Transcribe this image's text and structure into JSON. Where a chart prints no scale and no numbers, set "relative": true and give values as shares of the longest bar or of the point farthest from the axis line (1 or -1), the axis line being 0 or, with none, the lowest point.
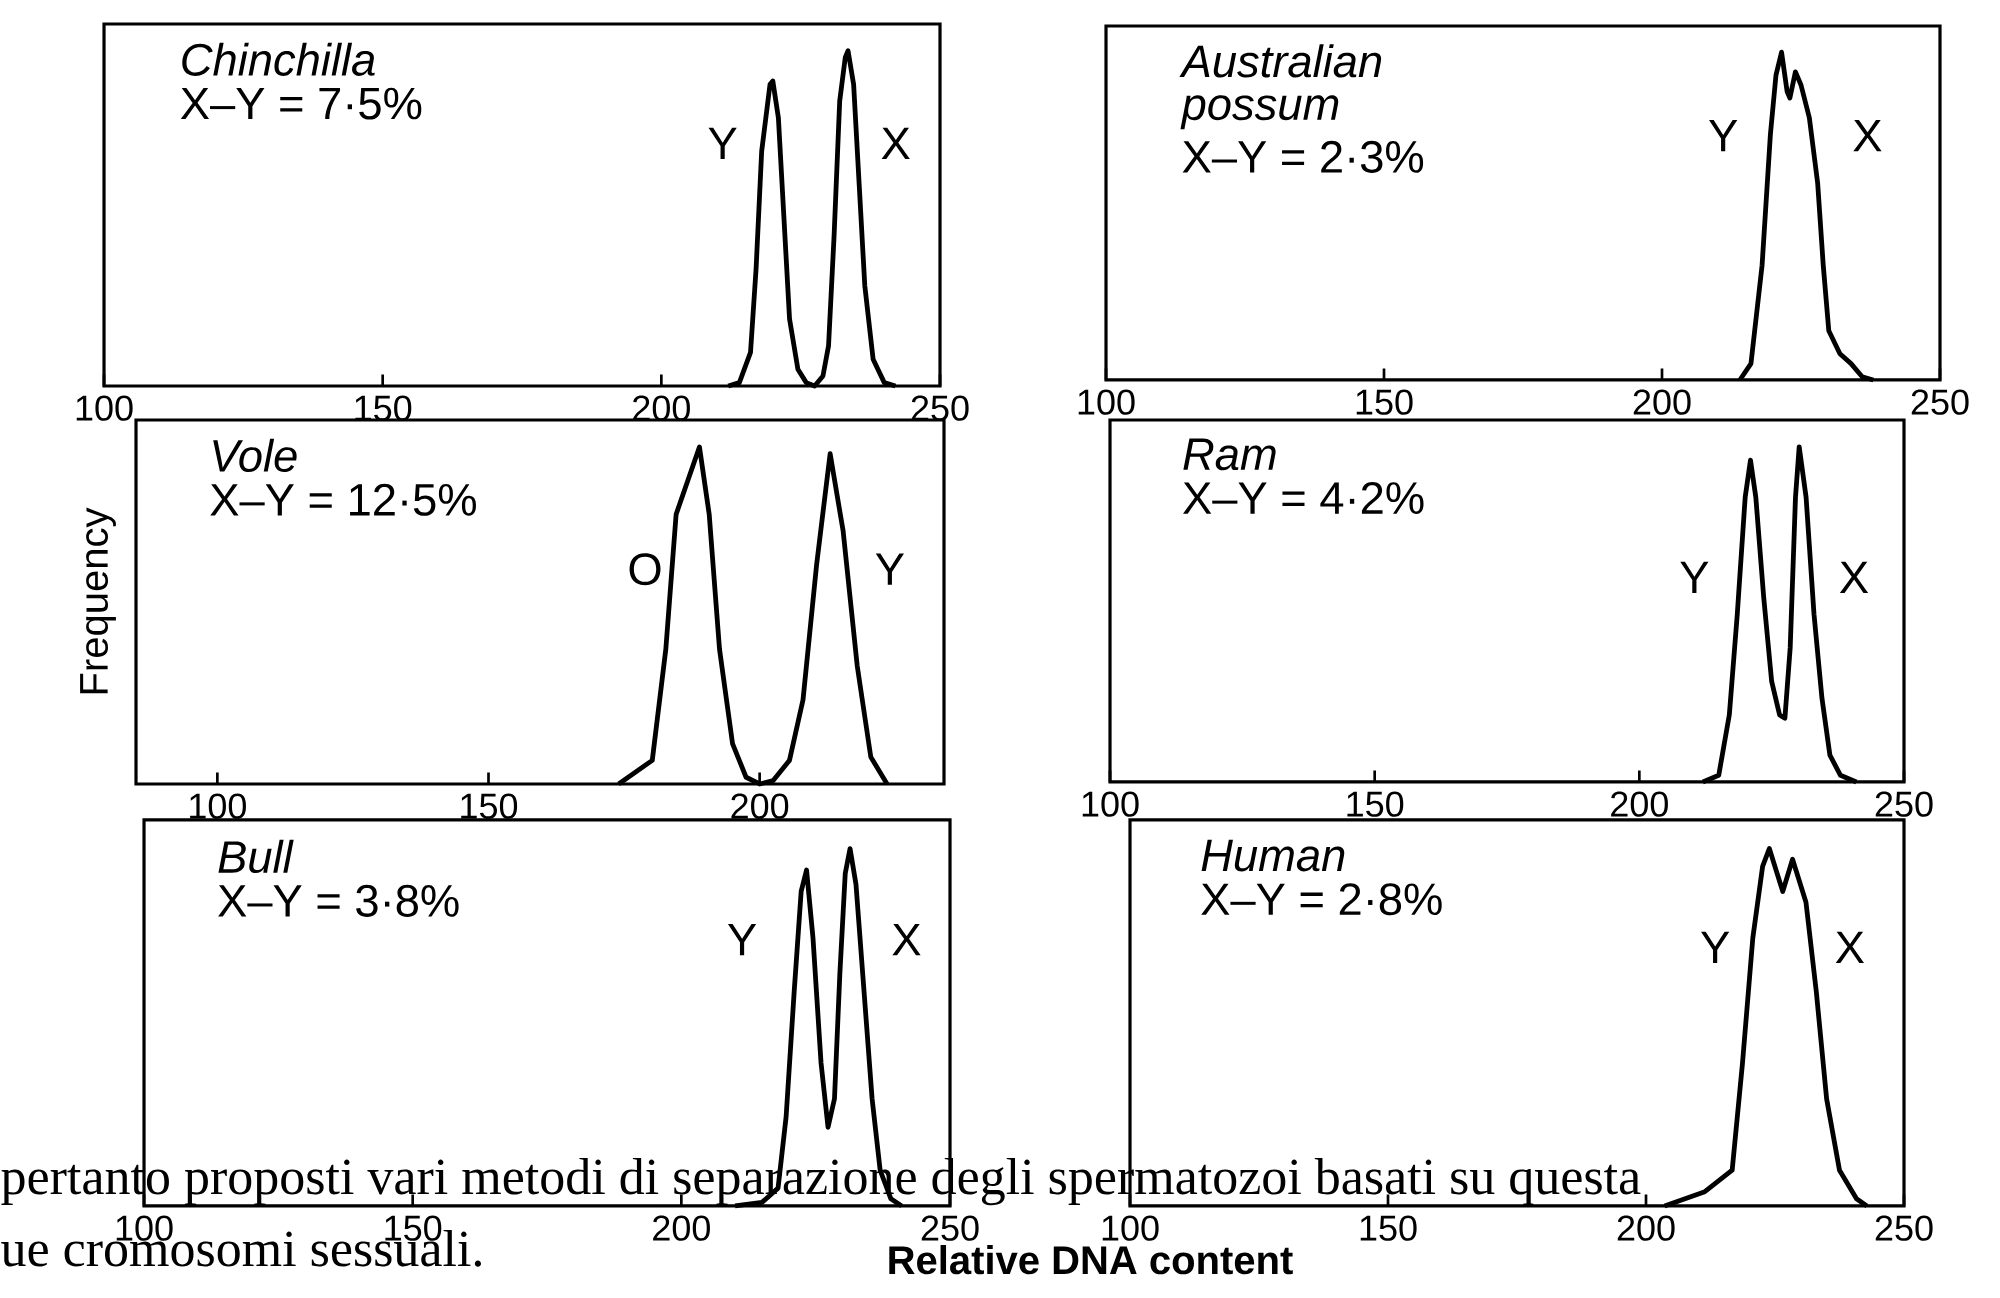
{
  "chart_data": [
    {
      "type": "line",
      "title": "Chinchilla",
      "subtitle": "X–Y = 7·5%",
      "relative": true,
      "tick_labels": "x",
      "xlim": [
        100,
        250
      ],
      "xticks": [
        100,
        150,
        200,
        250
      ],
      "series": [
        {
          "color": "#000000",
          "x": [
            212,
            214,
            216,
            217,
            218,
            219.5,
            220,
            221,
            222,
            223,
            224.5,
            226,
            227.5,
            229,
            230,
            231,
            232,
            233,
            233.5,
            234.5,
            235.5,
            236.5,
            238,
            240,
            242
          ],
          "values": [
            0,
            0.01,
            0.1,
            0.35,
            0.7,
            0.9,
            0.91,
            0.8,
            0.5,
            0.2,
            0.05,
            0.01,
            0,
            0.03,
            0.12,
            0.45,
            0.85,
            0.98,
            1,
            0.9,
            0.6,
            0.3,
            0.08,
            0.01,
            0
          ]
        }
      ],
      "annotations": [
        "Y",
        "X"
      ]
    },
    {
      "type": "line",
      "title": "Australian possum",
      "subtitle": "X–Y = 2·3%",
      "relative": true,
      "tick_labels": "x",
      "xlim": [
        100,
        250
      ],
      "xticks": [
        100,
        150,
        200,
        250
      ],
      "series": [
        {
          "color": "#000000",
          "x": [
            214,
            216,
            218,
            219.5,
            220.5,
            221.5,
            222.5,
            223,
            224,
            225,
            226.5,
            228,
            229,
            230,
            232,
            234,
            236,
            238
          ],
          "values": [
            0,
            0.05,
            0.35,
            0.75,
            0.93,
            1,
            0.88,
            0.86,
            0.94,
            0.9,
            0.8,
            0.6,
            0.35,
            0.15,
            0.08,
            0.05,
            0.01,
            0
          ]
        }
      ],
      "annotations": [
        "Y",
        "X"
      ]
    },
    {
      "type": "line",
      "title": "Vole",
      "subtitle": "X–Y = 12·5%",
      "ylabel": "Frequency",
      "relative": true,
      "tick_labels": "x",
      "xlim": [
        85,
        234
      ],
      "xticks": [
        100,
        150,
        200
      ],
      "series": [
        {
          "color": "#000000",
          "x": [
            174,
            180.2,
            182.7,
            184.6,
            188.9,
            190.7,
            192.6,
            195,
            197.5,
            200,
            202.5,
            205.5,
            208,
            210.5,
            213,
            215.4,
            218,
            220.5,
            223.5
          ],
          "values": [
            0,
            0.07,
            0.4,
            0.8,
            1,
            0.8,
            0.4,
            0.12,
            0.02,
            0,
            0.01,
            0.07,
            0.25,
            0.65,
            0.98,
            0.75,
            0.35,
            0.08,
            0
          ]
        }
      ],
      "annotations": [
        "O",
        "Y"
      ]
    },
    {
      "type": "line",
      "title": "Ram",
      "subtitle": "X–Y = 4·2%",
      "relative": true,
      "tick_labels": "x",
      "xlim": [
        100,
        250
      ],
      "xticks": [
        100,
        150,
        200,
        250
      ],
      "series": [
        {
          "color": "#000000",
          "x": [
            212,
            215,
            217,
            218.5,
            220,
            221,
            222,
            223.5,
            225,
            226.5,
            227.5,
            228.5,
            229.5,
            230.2,
            231.5,
            233,
            234.5,
            236,
            238,
            241
          ],
          "values": [
            0,
            0.02,
            0.2,
            0.5,
            0.85,
            0.96,
            0.85,
            0.55,
            0.3,
            0.2,
            0.19,
            0.4,
            0.85,
            1,
            0.85,
            0.5,
            0.25,
            0.08,
            0.02,
            0
          ]
        }
      ],
      "annotations": [
        "Y",
        "X"
      ]
    },
    {
      "type": "line",
      "title": "Bull",
      "subtitle": "X–Y = 3·8%",
      "xlabel": "Relative DNA content",
      "relative": true,
      "tick_labels": "x",
      "xlim": [
        100,
        250
      ],
      "xticks": [
        100,
        150,
        200,
        250
      ],
      "series": [
        {
          "color": "#000000",
          "x": [
            210,
            215,
            218,
            219.5,
            221,
            222.3,
            223.3,
            224.5,
            226,
            227.3,
            228.5,
            229.5,
            230.5,
            231.4,
            232.5,
            234,
            235.5,
            237,
            239,
            241
          ],
          "values": [
            0,
            0.01,
            0.05,
            0.25,
            0.6,
            0.88,
            0.94,
            0.75,
            0.4,
            0.22,
            0.3,
            0.65,
            0.93,
            1,
            0.9,
            0.6,
            0.3,
            0.1,
            0.02,
            0
          ]
        }
      ],
      "annotations": [
        "Y",
        "X",
        "pertanto proposti vari metodi di separazione degli spermatozoi basati su questa",
        "ue cromosomi sessuali."
      ]
    },
    {
      "type": "line",
      "title": "Human",
      "subtitle": "X–Y = 2·8%",
      "relative": true,
      "tick_labels": "x",
      "xlim": [
        100,
        250
      ],
      "xticks": [
        100,
        150,
        200,
        250
      ],
      "series": [
        {
          "color": "#000000",
          "x": [
            203.6,
            211.4,
            216.7,
            218.7,
            220.7,
            222.6,
            223.9,
            226.5,
            228.4,
            231,
            233,
            235,
            237.5,
            240.8,
            242.8
          ],
          "values": [
            0,
            0.04,
            0.1,
            0.4,
            0.75,
            0.95,
            1,
            0.88,
            0.97,
            0.85,
            0.6,
            0.3,
            0.1,
            0.02,
            0
          ]
        }
      ],
      "annotations": [
        "Y",
        "X"
      ]
    }
  ]
}
